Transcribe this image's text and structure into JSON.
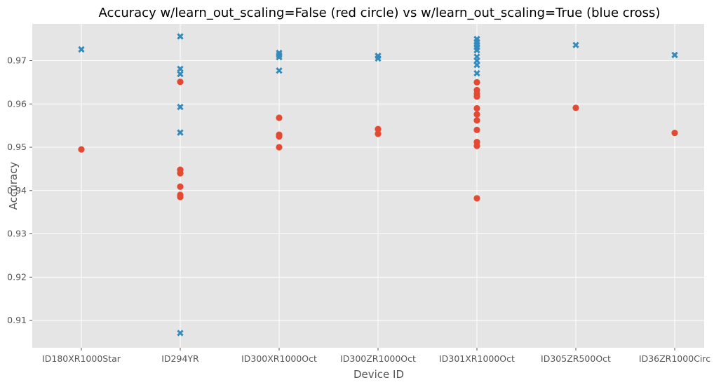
{
  "chart_data": {
    "type": "scatter",
    "title": "Accuracy w/learn_out_scaling=False (red circle) vs w/learn_out_scaling=True (blue cross)",
    "xlabel": "Device ID",
    "ylabel": "Accuracy",
    "categories": [
      "ID180XR1000Star",
      "ID294YR",
      "ID300XR1000Oct",
      "ID300ZR1000Oct",
      "ID301XR1000Oct",
      "ID305ZR500Oct",
      "ID36ZR1000Circ"
    ],
    "yticks": [
      "0.91",
      "0.92",
      "0.93",
      "0.94",
      "0.95",
      "0.96",
      "0.97"
    ],
    "ylim": [
      0.9037,
      0.9785
    ],
    "grid": true,
    "series": [
      {
        "color": "#E24A33",
        "marker": "circle",
        "values": [
          [
            0.9495
          ],
          [
            0.9651,
            0.9448,
            0.944,
            0.9409,
            0.939,
            0.9385
          ],
          [
            0.9568,
            0.9529,
            0.9525,
            0.95
          ],
          [
            0.9542,
            0.9531
          ],
          [
            0.965,
            0.9632,
            0.9624,
            0.9617,
            0.959,
            0.9576,
            0.9562,
            0.954,
            0.9512,
            0.9503,
            0.9382
          ],
          [
            0.9591
          ],
          [
            0.9533
          ]
        ]
      },
      {
        "color": "#348ABD",
        "marker": "cross",
        "values": [
          [
            0.9726
          ],
          [
            0.9756,
            0.9681,
            0.9669,
            0.9593,
            0.9534,
            0.9071
          ],
          [
            0.9718,
            0.9713,
            0.9708,
            0.9677
          ],
          [
            0.9711,
            0.9705
          ],
          [
            0.975,
            0.9743,
            0.9737,
            0.9731,
            0.9724,
            0.9709,
            0.97,
            0.969,
            0.9671
          ],
          [
            0.9736
          ],
          [
            0.9713
          ]
        ]
      }
    ]
  }
}
